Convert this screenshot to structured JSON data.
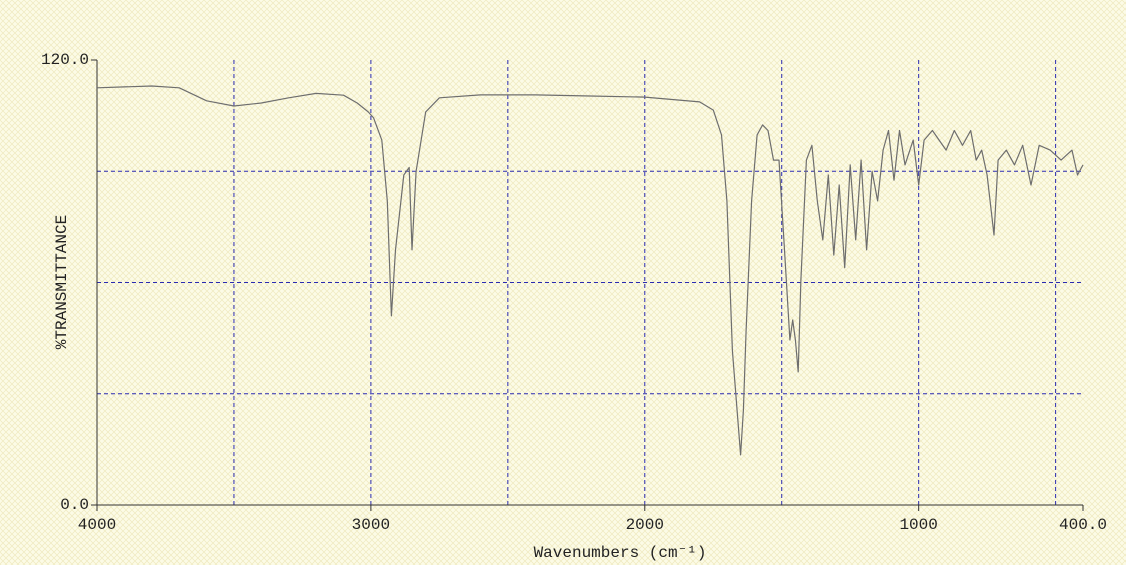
{
  "chart_data": {
    "type": "line",
    "xlabel": "Wavenumbers  (cm⁻¹)",
    "ylabel": "%TRANSMITTANCE",
    "xlim": [
      4000,
      400
    ],
    "ylim": [
      0,
      120
    ],
    "xticks": [
      4000,
      3000,
      2000,
      1000,
      {
        "value": 400,
        "label": "400.0"
      }
    ],
    "yticks": [
      {
        "value": 0,
        "label": "0.0"
      },
      {
        "value": 120,
        "label": "120.0"
      }
    ],
    "xgrid": [
      3500,
      3000,
      2500,
      2000,
      1500,
      1000,
      500
    ],
    "ygrid": [
      30,
      60,
      90
    ],
    "grid_color": "#2b2bb0",
    "series": [
      {
        "color": "#6e6e6e",
        "x": [
          4000,
          3800,
          3700,
          3600,
          3500,
          3400,
          3300,
          3200,
          3100,
          3050,
          3010,
          2990,
          2960,
          2940,
          2925,
          2910,
          2880,
          2860,
          2850,
          2835,
          2800,
          2750,
          2600,
          2400,
          2200,
          2000,
          1800,
          1750,
          1720,
          1700,
          1680,
          1650,
          1640,
          1630,
          1610,
          1590,
          1570,
          1550,
          1530,
          1510,
          1490,
          1470,
          1460,
          1450,
          1440,
          1430,
          1410,
          1390,
          1370,
          1350,
          1330,
          1310,
          1290,
          1270,
          1250,
          1230,
          1210,
          1190,
          1170,
          1150,
          1130,
          1110,
          1090,
          1070,
          1050,
          1020,
          1000,
          980,
          950,
          900,
          870,
          840,
          810,
          790,
          770,
          750,
          725,
          710,
          680,
          650,
          620,
          590,
          560,
          520,
          480,
          440,
          420,
          400
        ],
        "values": [
          112.5,
          113,
          112.5,
          109,
          107.6,
          108.4,
          109.8,
          111,
          110.5,
          108.4,
          106,
          104.4,
          98.4,
          82,
          51,
          68.8,
          89,
          91,
          68.8,
          90,
          106,
          109.8,
          110.6,
          110.6,
          110.3,
          110,
          108.7,
          106.5,
          99.8,
          82,
          41.6,
          13.5,
          25.6,
          47,
          82,
          99.8,
          102.5,
          101,
          93,
          93,
          68.8,
          44.5,
          49.9,
          44.5,
          35.9,
          60.7,
          93,
          97,
          82,
          71.5,
          89,
          67.4,
          86.3,
          64,
          91.7,
          71.5,
          93,
          68.8,
          90,
          82,
          95.7,
          101,
          87.6,
          101,
          91.7,
          98.4,
          86.3,
          98.4,
          101,
          95.7,
          101,
          97,
          101,
          93,
          95.7,
          89,
          72.8,
          93,
          95.7,
          91.7,
          97,
          86.3,
          97,
          95.7,
          93,
          95.7,
          89,
          91.7
        ]
      }
    ]
  }
}
